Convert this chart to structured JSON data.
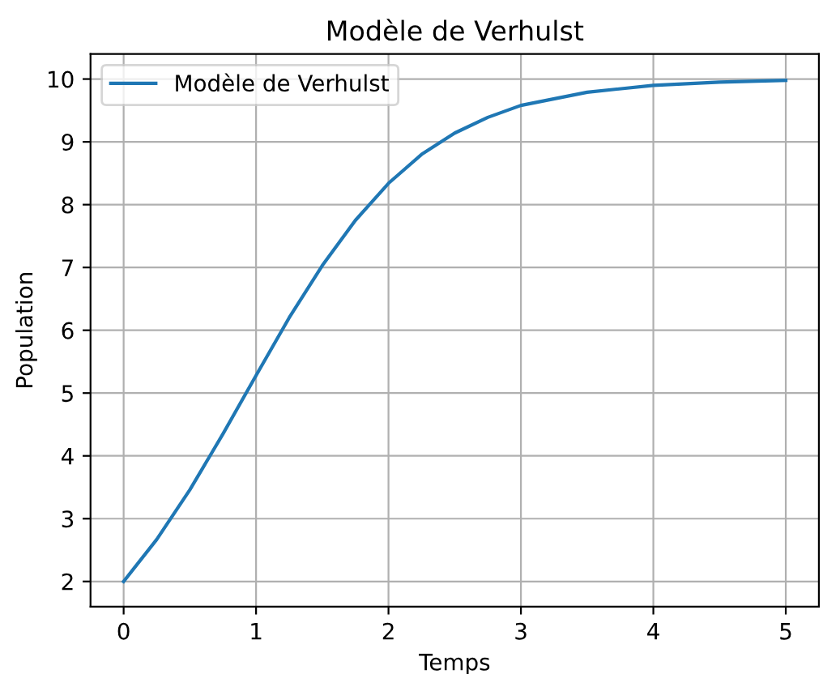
{
  "chart_data": {
    "type": "line",
    "title": "Modèle de Verhulst",
    "xlabel": "Temps",
    "ylabel": "Population",
    "x": [
      0,
      0.25,
      0.5,
      0.75,
      1.0,
      1.25,
      1.5,
      1.75,
      2.0,
      2.25,
      2.5,
      2.75,
      3.0,
      3.5,
      4.0,
      4.5,
      5.0
    ],
    "series": [
      {
        "name": "Modèle de Verhulst",
        "color": "#1f77b4",
        "values": [
          2.0,
          2.67,
          3.46,
          4.35,
          5.28,
          6.2,
          7.03,
          7.75,
          8.34,
          8.8,
          9.14,
          9.39,
          9.58,
          9.79,
          9.9,
          9.95,
          9.98
        ]
      }
    ],
    "xlim": [
      -0.25,
      5.25
    ],
    "ylim": [
      1.6,
      10.4
    ],
    "xticks": [
      0,
      1,
      2,
      3,
      4,
      5
    ],
    "yticks": [
      2,
      3,
      4,
      5,
      6,
      7,
      8,
      9,
      10
    ],
    "grid": true,
    "legend": "top left"
  }
}
